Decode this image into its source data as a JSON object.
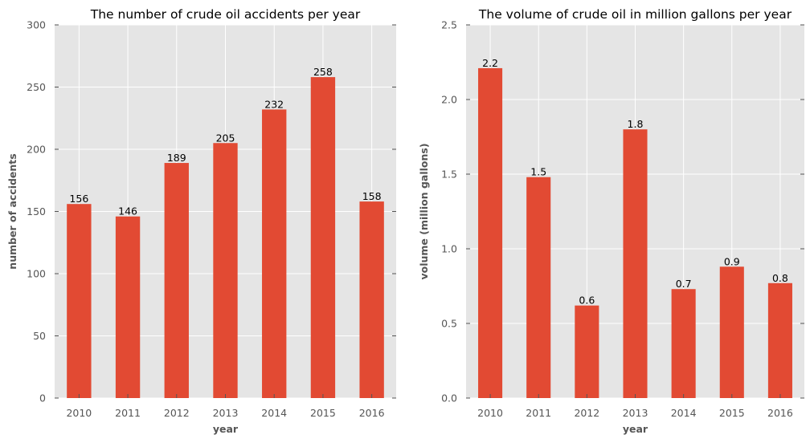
{
  "chart_data": [
    {
      "type": "bar",
      "title": "The number of crude oil accidents per year",
      "xlabel": "year",
      "ylabel": "number of accidents",
      "categories": [
        "2010",
        "2011",
        "2012",
        "2013",
        "2014",
        "2015",
        "2016"
      ],
      "values": [
        156,
        146,
        189,
        205,
        232,
        258,
        158
      ],
      "value_labels": [
        "156",
        "146",
        "189",
        "205",
        "232",
        "258",
        "158"
      ],
      "ylim": [
        0,
        300
      ],
      "yticks": [
        0,
        50,
        100,
        150,
        200,
        250,
        300
      ],
      "ytick_labels": [
        "0",
        "50",
        "100",
        "150",
        "200",
        "250",
        "300"
      ],
      "grid": true
    },
    {
      "type": "bar",
      "title": "The volume of crude oil in million gallons per year",
      "xlabel": "year",
      "ylabel": "volume (million gallons)",
      "categories": [
        "2010",
        "2011",
        "2012",
        "2013",
        "2014",
        "2015",
        "2016"
      ],
      "values": [
        2.21,
        1.48,
        0.62,
        1.8,
        0.73,
        0.88,
        0.77
      ],
      "value_labels": [
        "2.2",
        "1.5",
        "0.6",
        "1.8",
        "0.7",
        "0.9",
        "0.8"
      ],
      "ylim": [
        0,
        2.5
      ],
      "yticks": [
        0,
        0.5,
        1.0,
        1.5,
        2.0,
        2.5
      ],
      "ytick_labels": [
        "0.0",
        "0.5",
        "1.0",
        "1.5",
        "2.0",
        "2.5"
      ],
      "grid": true
    }
  ],
  "colors": {
    "bar": "#E24A33",
    "plot_background": "#E5E5E5",
    "grid": "#FFFFFF",
    "tick_text": "#555555"
  }
}
